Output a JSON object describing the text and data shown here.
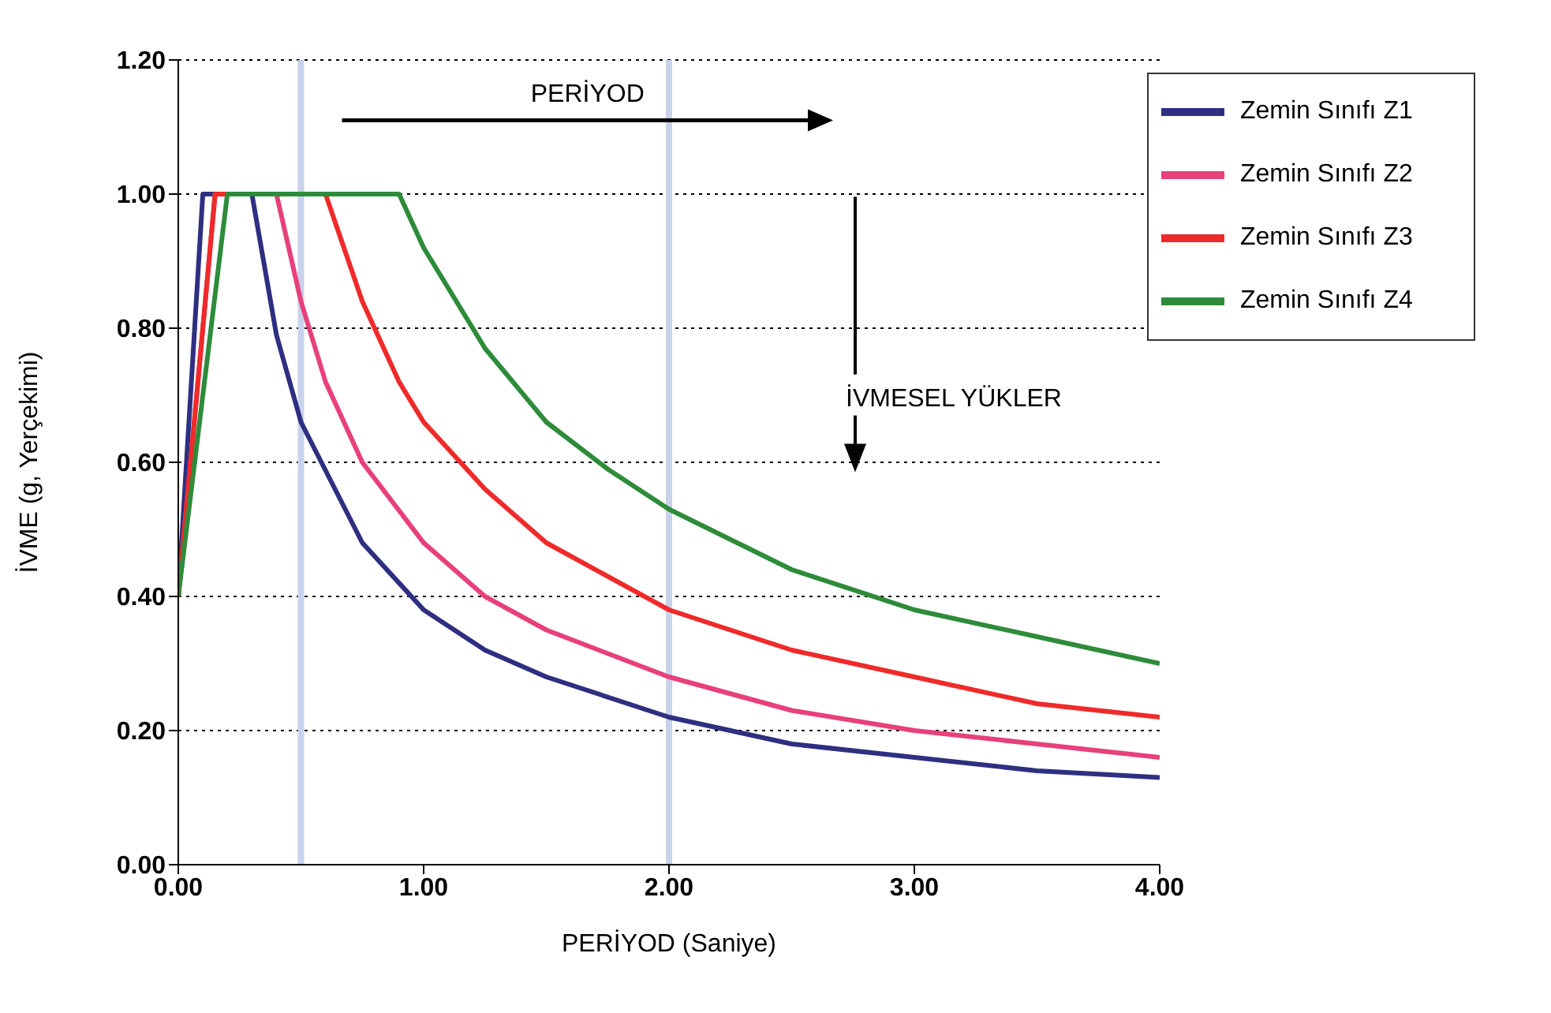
{
  "chart_data": {
    "type": "line",
    "xlabel": "PERİYOD (Saniye)",
    "ylabel": "İVME (g, Yerçekimi)",
    "xlim": [
      0,
      4
    ],
    "xticks": [
      {
        "value": 0,
        "label": "0.00"
      },
      {
        "value": 1,
        "label": "1.00"
      },
      {
        "value": 2,
        "label": "2.00"
      },
      {
        "value": 3,
        "label": "3.00"
      },
      {
        "value": 4,
        "label": "4.00"
      }
    ],
    "ylim": [
      0,
      1.2
    ],
    "yticks": [
      {
        "value": 0,
        "label": "0.00"
      },
      {
        "value": 0.2,
        "label": "0.20"
      },
      {
        "value": 0.4,
        "label": "0.40"
      },
      {
        "value": 0.6,
        "label": "0.60"
      },
      {
        "value": 0.8,
        "label": "0.80"
      },
      {
        "value": 1,
        "label": "1.00"
      },
      {
        "value": 1.2,
        "label": "1.20"
      }
    ],
    "grid": "y",
    "legend": "top right",
    "marker": "none",
    "line_style": "solid",
    "series": [
      {
        "name": "Zemin Sınıfı Z1",
        "color": "#2e2f80",
        "x": [
          0,
          0.1,
          0.3,
          0.4,
          0.5,
          0.75,
          1,
          1.25,
          1.5,
          2,
          2.5,
          3,
          3.5,
          4
        ],
        "values": [
          0.4,
          1,
          1,
          0.79,
          0.66,
          0.48,
          0.38,
          0.32,
          0.28,
          0.22,
          0.18,
          0.16,
          0.14,
          0.13
        ]
      },
      {
        "name": "Zemin Sınıfı Z2",
        "color": "#e8407a",
        "x": [
          0,
          0.15,
          0.4,
          0.5,
          0.6,
          0.75,
          1,
          1.25,
          1.5,
          2,
          2.5,
          3,
          3.5,
          4
        ],
        "values": [
          0.4,
          1,
          1,
          0.84,
          0.72,
          0.6,
          0.48,
          0.4,
          0.35,
          0.28,
          0.23,
          0.2,
          0.18,
          0.16
        ]
      },
      {
        "name": "Zemin Sınıfı Z3",
        "color": "#f02a2a",
        "x": [
          0,
          0.15,
          0.6,
          0.75,
          0.9,
          1,
          1.25,
          1.5,
          2,
          2.5,
          3,
          3.5,
          4
        ],
        "values": [
          0.4,
          1,
          1,
          0.84,
          0.72,
          0.66,
          0.56,
          0.48,
          0.38,
          0.32,
          0.28,
          0.24,
          0.22
        ]
      },
      {
        "name": "Zemin Sınıfı Z4",
        "color": "#2e8b3a",
        "x": [
          0,
          0.2,
          0.9,
          1,
          1.25,
          1.5,
          1.75,
          2,
          2.5,
          3,
          3.5,
          4
        ],
        "values": [
          0.4,
          1,
          1,
          0.92,
          0.77,
          0.66,
          0.59,
          0.53,
          0.44,
          0.38,
          0.34,
          0.3
        ]
      }
    ],
    "ref_lines": [
      {
        "axis": "x",
        "value": 0.5,
        "color": "#c8d2ea"
      },
      {
        "axis": "x",
        "value": 2,
        "color": "#c8d2ea"
      }
    ],
    "annotations": [
      "PERİYOD",
      "İVMESEL YÜKLER"
    ]
  }
}
